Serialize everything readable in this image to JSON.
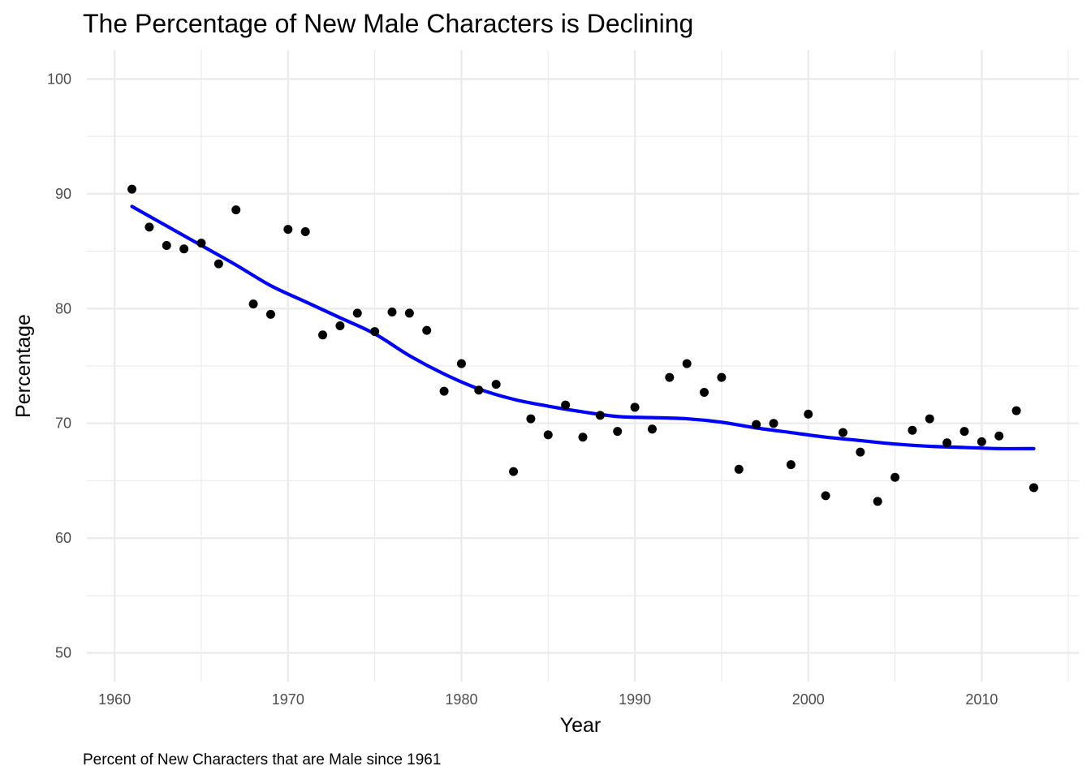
{
  "chart_data": {
    "type": "scatter",
    "title": "The Percentage of New Male Characters is Declining",
    "xlabel": "Year",
    "ylabel": "Percentage",
    "caption": "Percent of New Characters that are Male since 1961",
    "xlim": [
      1958.4,
      2015.6
    ],
    "ylim": [
      47.5,
      102.5
    ],
    "x_ticks": [
      1960,
      1970,
      1980,
      1990,
      2000,
      2010
    ],
    "y_ticks": [
      50,
      60,
      70,
      80,
      90,
      100
    ],
    "grid": true,
    "colors": {
      "points": "#000000",
      "smooth": "#0000ff",
      "grid": "#ebebeb"
    },
    "series": [
      {
        "type": "scatter",
        "x": [
          1961,
          1962,
          1963,
          1964,
          1965,
          1966,
          1967,
          1968,
          1969,
          1970,
          1971,
          1972,
          1973,
          1974,
          1975,
          1976,
          1977,
          1978,
          1979,
          1980,
          1981,
          1982,
          1983,
          1984,
          1985,
          1986,
          1987,
          1988,
          1989,
          1990,
          1991,
          1992,
          1993,
          1994,
          1995,
          1996,
          1997,
          1998,
          1999,
          2000,
          2001,
          2002,
          2003,
          2004,
          2005,
          2006,
          2007,
          2008,
          2009,
          2010,
          2011,
          2012,
          2013
        ],
        "y": [
          90.4,
          87.1,
          85.5,
          85.2,
          85.7,
          83.9,
          88.6,
          80.4,
          79.5,
          86.9,
          86.7,
          77.7,
          78.5,
          79.6,
          78.0,
          79.7,
          79.6,
          78.1,
          72.8,
          75.2,
          72.9,
          73.4,
          65.8,
          70.4,
          69.0,
          71.6,
          68.8,
          70.7,
          69.3,
          71.4,
          69.5,
          74.0,
          75.2,
          72.7,
          74.0,
          66.0,
          69.9,
          70.0,
          66.4,
          70.8,
          63.7,
          69.2,
          67.5,
          63.2,
          65.3,
          69.4,
          70.4,
          68.3,
          69.3,
          68.4,
          68.9,
          71.1,
          64.4
        ]
      },
      {
        "type": "line",
        "x": [
          1961,
          1963,
          1965,
          1967,
          1969,
          1971,
          1973,
          1975,
          1977,
          1979,
          1981,
          1983,
          1985,
          1987,
          1989,
          1991,
          1993,
          1995,
          1997,
          1999,
          2001,
          2003,
          2005,
          2007,
          2009,
          2011,
          2013
        ],
        "y": [
          88.9,
          87.2,
          85.5,
          83.8,
          82.0,
          80.6,
          79.2,
          77.8,
          75.9,
          74.3,
          73.0,
          72.1,
          71.5,
          71.0,
          70.6,
          70.5,
          70.4,
          70.1,
          69.6,
          69.2,
          68.8,
          68.5,
          68.2,
          68.0,
          67.9,
          67.8,
          67.8
        ]
      }
    ]
  }
}
